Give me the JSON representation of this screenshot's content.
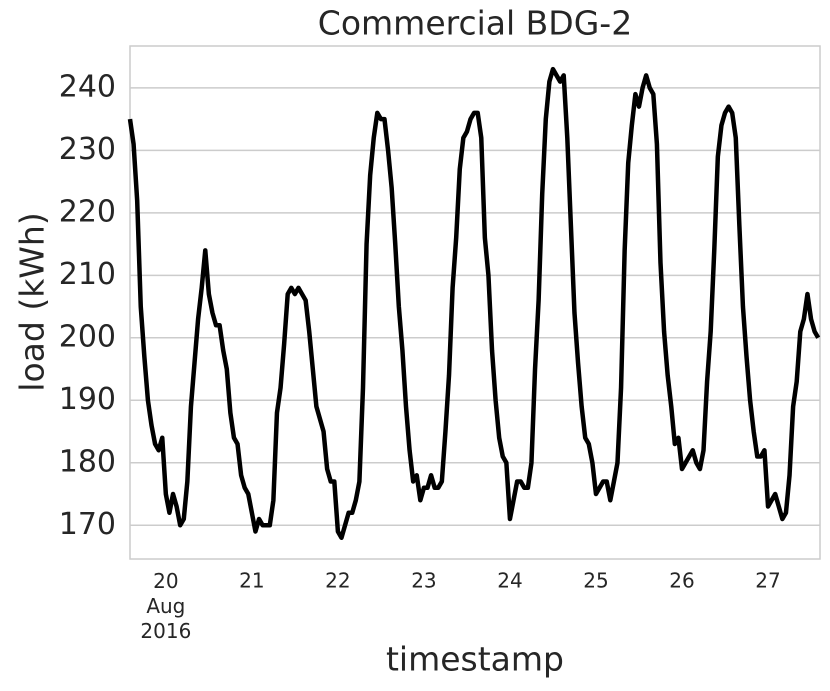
{
  "chart_data": {
    "type": "line",
    "title": "Commercial BDG-2",
    "xlabel": "timestamp",
    "ylabel": "load (kWh)",
    "x": [
      "2016-08-19T14:00",
      "2016-08-19T15:00",
      "2016-08-19T16:00",
      "2016-08-19T17:00",
      "2016-08-19T18:00",
      "2016-08-19T19:00",
      "2016-08-19T20:00",
      "2016-08-19T21:00",
      "2016-08-19T22:00",
      "2016-08-19T23:00",
      "2016-08-20T00:00",
      "2016-08-20T01:00",
      "2016-08-20T02:00",
      "2016-08-20T03:00",
      "2016-08-20T04:00",
      "2016-08-20T05:00",
      "2016-08-20T06:00",
      "2016-08-20T07:00",
      "2016-08-20T08:00",
      "2016-08-20T09:00",
      "2016-08-20T10:00",
      "2016-08-20T11:00",
      "2016-08-20T12:00",
      "2016-08-20T13:00",
      "2016-08-20T14:00",
      "2016-08-20T15:00",
      "2016-08-20T16:00",
      "2016-08-20T17:00",
      "2016-08-20T18:00",
      "2016-08-20T19:00",
      "2016-08-20T20:00",
      "2016-08-20T21:00",
      "2016-08-20T22:00",
      "2016-08-20T23:00",
      "2016-08-21T00:00",
      "2016-08-21T01:00",
      "2016-08-21T02:00",
      "2016-08-21T03:00",
      "2016-08-21T04:00",
      "2016-08-21T05:00",
      "2016-08-21T06:00",
      "2016-08-21T07:00",
      "2016-08-21T08:00",
      "2016-08-21T09:00",
      "2016-08-21T10:00",
      "2016-08-21T11:00",
      "2016-08-21T12:00",
      "2016-08-21T13:00",
      "2016-08-21T14:00",
      "2016-08-21T15:00",
      "2016-08-21T16:00",
      "2016-08-21T17:00",
      "2016-08-21T18:00",
      "2016-08-21T19:00",
      "2016-08-21T20:00",
      "2016-08-21T21:00",
      "2016-08-21T22:00",
      "2016-08-21T23:00",
      "2016-08-22T00:00",
      "2016-08-22T01:00",
      "2016-08-22T02:00",
      "2016-08-22T03:00",
      "2016-08-22T04:00",
      "2016-08-22T05:00",
      "2016-08-22T06:00",
      "2016-08-22T07:00",
      "2016-08-22T08:00",
      "2016-08-22T09:00",
      "2016-08-22T10:00",
      "2016-08-22T11:00",
      "2016-08-22T12:00",
      "2016-08-22T13:00",
      "2016-08-22T14:00",
      "2016-08-22T15:00",
      "2016-08-22T16:00",
      "2016-08-22T17:00",
      "2016-08-22T18:00",
      "2016-08-22T19:00",
      "2016-08-22T20:00",
      "2016-08-22T21:00",
      "2016-08-22T22:00",
      "2016-08-22T23:00",
      "2016-08-23T00:00",
      "2016-08-23T01:00",
      "2016-08-23T02:00",
      "2016-08-23T03:00",
      "2016-08-23T04:00",
      "2016-08-23T05:00",
      "2016-08-23T06:00",
      "2016-08-23T07:00",
      "2016-08-23T08:00",
      "2016-08-23T09:00",
      "2016-08-23T10:00",
      "2016-08-23T11:00",
      "2016-08-23T12:00",
      "2016-08-23T13:00",
      "2016-08-23T14:00",
      "2016-08-23T15:00",
      "2016-08-23T16:00",
      "2016-08-23T17:00",
      "2016-08-23T18:00",
      "2016-08-23T19:00",
      "2016-08-23T20:00",
      "2016-08-23T21:00",
      "2016-08-23T22:00",
      "2016-08-23T23:00",
      "2016-08-24T00:00",
      "2016-08-24T01:00",
      "2016-08-24T02:00",
      "2016-08-24T03:00",
      "2016-08-24T04:00",
      "2016-08-24T05:00",
      "2016-08-24T06:00",
      "2016-08-24T07:00",
      "2016-08-24T08:00",
      "2016-08-24T09:00",
      "2016-08-24T10:00",
      "2016-08-24T11:00",
      "2016-08-24T12:00",
      "2016-08-24T13:00",
      "2016-08-24T14:00",
      "2016-08-24T15:00",
      "2016-08-24T16:00",
      "2016-08-24T17:00",
      "2016-08-24T18:00",
      "2016-08-24T19:00",
      "2016-08-24T20:00",
      "2016-08-24T21:00",
      "2016-08-24T22:00",
      "2016-08-24T23:00",
      "2016-08-25T00:00",
      "2016-08-25T01:00",
      "2016-08-25T02:00",
      "2016-08-25T03:00",
      "2016-08-25T04:00",
      "2016-08-25T05:00",
      "2016-08-25T06:00",
      "2016-08-25T07:00",
      "2016-08-25T08:00",
      "2016-08-25T09:00",
      "2016-08-25T10:00",
      "2016-08-25T11:00",
      "2016-08-25T12:00",
      "2016-08-25T13:00",
      "2016-08-25T14:00",
      "2016-08-25T15:00",
      "2016-08-25T16:00",
      "2016-08-25T17:00",
      "2016-08-25T18:00",
      "2016-08-25T19:00",
      "2016-08-25T20:00",
      "2016-08-25T21:00",
      "2016-08-25T22:00",
      "2016-08-25T23:00",
      "2016-08-26T00:00",
      "2016-08-26T01:00",
      "2016-08-26T02:00",
      "2016-08-26T03:00",
      "2016-08-26T04:00",
      "2016-08-26T05:00",
      "2016-08-26T06:00",
      "2016-08-26T07:00",
      "2016-08-26T08:00",
      "2016-08-26T09:00",
      "2016-08-26T10:00",
      "2016-08-26T11:00",
      "2016-08-26T12:00",
      "2016-08-26T13:00",
      "2016-08-26T14:00",
      "2016-08-26T15:00",
      "2016-08-26T16:00",
      "2016-08-26T17:00",
      "2016-08-26T18:00",
      "2016-08-26T19:00",
      "2016-08-26T20:00",
      "2016-08-26T21:00",
      "2016-08-26T22:00",
      "2016-08-26T23:00",
      "2016-08-27T00:00",
      "2016-08-27T01:00",
      "2016-08-27T02:00",
      "2016-08-27T03:00",
      "2016-08-27T04:00",
      "2016-08-27T05:00",
      "2016-08-27T06:00",
      "2016-08-27T07:00",
      "2016-08-27T08:00",
      "2016-08-27T09:00",
      "2016-08-27T10:00",
      "2016-08-27T11:00",
      "2016-08-27T12:00",
      "2016-08-27T13:00",
      "2016-08-27T14:00"
    ],
    "series": [
      {
        "color": "#000000",
        "values": [
          235,
          231,
          222,
          205,
          197,
          190,
          186,
          183,
          182,
          184,
          175,
          172,
          175,
          173,
          170,
          171,
          177,
          189,
          196,
          203,
          208,
          214,
          207,
          204,
          202,
          202,
          198,
          195,
          188,
          184,
          183,
          178,
          176,
          175,
          172,
          169,
          171,
          170,
          170,
          170,
          174,
          188,
          192,
          199,
          207,
          208,
          207,
          208,
          207,
          206,
          201,
          195,
          189,
          187,
          185,
          179,
          177,
          177,
          169,
          168,
          170,
          172,
          172,
          174,
          177,
          192,
          215,
          226,
          232,
          236,
          235,
          235,
          230,
          224,
          215,
          205,
          198,
          189,
          182,
          177,
          178,
          174,
          176,
          176,
          178,
          176,
          176,
          177,
          185,
          194,
          208,
          216,
          227,
          232,
          233,
          235,
          236,
          236,
          232,
          216,
          210,
          198,
          190,
          184,
          181,
          180,
          171,
          174,
          177,
          177,
          176,
          176,
          180,
          195,
          206,
          223,
          235,
          241,
          243,
          242,
          241,
          242,
          232,
          218,
          204,
          196,
          189,
          184,
          183,
          180,
          175,
          176,
          177,
          177,
          174,
          177,
          180,
          192,
          214,
          228,
          234,
          239,
          237,
          240,
          242,
          240,
          239,
          231,
          212,
          201,
          194,
          189,
          183,
          184,
          179,
          180,
          181,
          182,
          180,
          179,
          182,
          193,
          201,
          214,
          229,
          234,
          236,
          237,
          236,
          232,
          218,
          205,
          197,
          190,
          185,
          181,
          181,
          182,
          173,
          174,
          175,
          173,
          171,
          172,
          178,
          189,
          193,
          201,
          203,
          207,
          203,
          201,
          200
        ]
      }
    ],
    "xlim": [
      "2016-08-19T14:00",
      "2016-08-27T14:30"
    ],
    "xticks": [
      {
        "value": "2016-08-20T00:00",
        "label": "20\nAug\n2016"
      },
      {
        "value": "2016-08-21T00:00",
        "label": "21"
      },
      {
        "value": "2016-08-22T00:00",
        "label": "22"
      },
      {
        "value": "2016-08-23T00:00",
        "label": "23"
      },
      {
        "value": "2016-08-24T00:00",
        "label": "24"
      },
      {
        "value": "2016-08-25T00:00",
        "label": "25"
      },
      {
        "value": "2016-08-26T00:00",
        "label": "26"
      },
      {
        "value": "2016-08-27T00:00",
        "label": "27"
      }
    ],
    "ylim": [
      164.6,
      246.7
    ],
    "yticks": [
      170,
      180,
      190,
      200,
      210,
      220,
      230,
      240
    ],
    "grid": true
  }
}
